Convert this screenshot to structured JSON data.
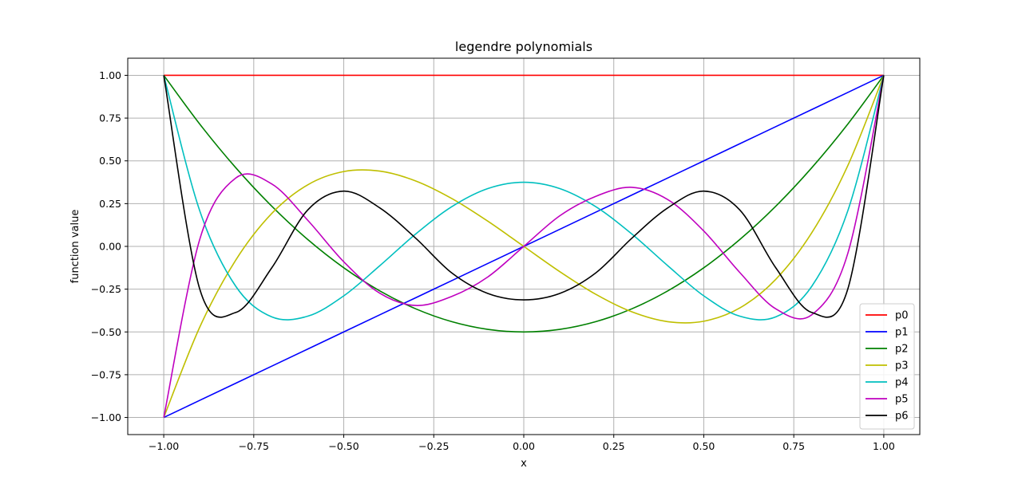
{
  "chart_data": {
    "type": "line",
    "title": "legendre polynomials",
    "xlabel": "x",
    "ylabel": "function value",
    "xlim": [
      -1.1,
      1.1
    ],
    "ylim": [
      -1.1,
      1.1
    ],
    "xticks": [
      -1.0,
      -0.75,
      -0.5,
      -0.25,
      0.0,
      0.25,
      0.5,
      0.75,
      1.0
    ],
    "xtick_labels": [
      "−1.00",
      "−0.75",
      "−0.50",
      "−0.25",
      "0.00",
      "0.25",
      "0.50",
      "0.75",
      "1.00"
    ],
    "yticks": [
      -1.0,
      -0.75,
      -0.5,
      -0.25,
      0.0,
      0.25,
      0.5,
      0.75,
      1.0
    ],
    "ytick_labels": [
      "−1.00",
      "−0.75",
      "−0.50",
      "−0.25",
      "0.00",
      "0.25",
      "0.50",
      "0.75",
      "1.00"
    ],
    "grid": true,
    "legend_position": "lower-right",
    "x": [
      -1.0,
      -0.9,
      -0.8,
      -0.7,
      -0.6,
      -0.5,
      -0.4,
      -0.3,
      -0.2,
      -0.1,
      0.0,
      0.1,
      0.2,
      0.3,
      0.4,
      0.5,
      0.6,
      0.7,
      0.8,
      0.9,
      1.0
    ],
    "series": [
      {
        "name": "p0",
        "color": "#ff0000",
        "values": [
          1,
          1,
          1,
          1,
          1,
          1,
          1,
          1,
          1,
          1,
          1,
          1,
          1,
          1,
          1,
          1,
          1,
          1,
          1,
          1,
          1
        ]
      },
      {
        "name": "p1",
        "color": "#0000ff",
        "values": [
          -1.0,
          -0.9,
          -0.8,
          -0.7,
          -0.6,
          -0.5,
          -0.4,
          -0.3,
          -0.2,
          -0.1,
          0.0,
          0.1,
          0.2,
          0.3,
          0.4,
          0.5,
          0.6,
          0.7,
          0.8,
          0.9,
          1.0
        ]
      },
      {
        "name": "p2",
        "color": "#008000",
        "values": [
          1.0,
          0.715,
          0.46,
          0.235,
          0.04,
          -0.125,
          -0.26,
          -0.365,
          -0.44,
          -0.485,
          -0.5,
          -0.485,
          -0.44,
          -0.365,
          -0.26,
          -0.125,
          0.04,
          0.235,
          0.46,
          0.715,
          1.0
        ]
      },
      {
        "name": "p3",
        "color": "#bfbf00",
        "values": [
          -1.0,
          -0.472,
          -0.08,
          0.1925,
          0.36,
          0.4375,
          0.44,
          0.3825,
          0.28,
          0.1475,
          0.0,
          -0.1475,
          -0.28,
          -0.3825,
          -0.44,
          -0.4375,
          -0.36,
          -0.1925,
          0.08,
          0.472,
          1.0
        ]
      },
      {
        "name": "p4",
        "color": "#00bfbf",
        "values": [
          1.0,
          0.2079,
          -0.233,
          -0.4121,
          -0.408,
          -0.2891,
          -0.113,
          0.0729,
          0.232,
          0.3379,
          0.375,
          0.3379,
          0.232,
          0.0729,
          -0.113,
          -0.2891,
          -0.408,
          -0.4121,
          -0.233,
          0.2079,
          1.0
        ]
      },
      {
        "name": "p5",
        "color": "#bf00bf",
        "values": [
          -1.0,
          0.0411,
          0.3995,
          0.3652,
          0.1526,
          -0.0898,
          -0.2737,
          -0.3454,
          -0.2926,
          -0.1788,
          0.0,
          0.1788,
          0.2926,
          0.3454,
          0.2737,
          0.0898,
          -0.1526,
          -0.3652,
          -0.3995,
          -0.0411,
          1.0
        ]
      },
      {
        "name": "p6",
        "color": "#000000",
        "values": [
          1.0,
          -0.2494,
          -0.3865,
          -0.1253,
          0.2131,
          0.3232,
          0.2252,
          0.0475,
          -0.1552,
          -0.2751,
          -0.3125,
          -0.2751,
          -0.1552,
          0.0475,
          0.2252,
          0.3232,
          0.2131,
          -0.1253,
          -0.3865,
          -0.2494,
          1.0
        ]
      }
    ]
  }
}
